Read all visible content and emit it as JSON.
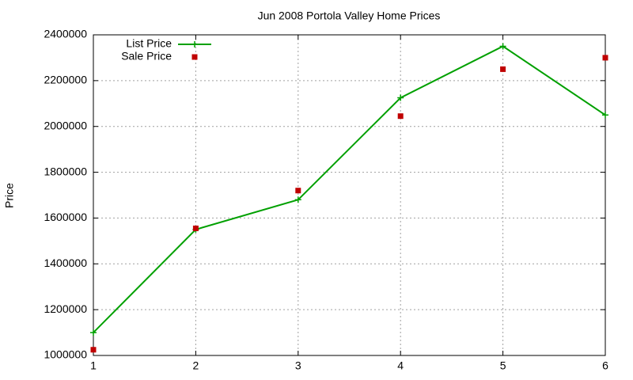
{
  "chart_data": {
    "type": "line",
    "title": "Jun 2008 Portola Valley Home Prices",
    "y_label": "Price",
    "x": [
      1,
      2,
      3,
      4,
      5,
      6
    ],
    "series": [
      {
        "name": "List Price",
        "color": "#00a000",
        "style": "linespoints",
        "values": [
          1100000,
          1550000,
          1680000,
          2125000,
          2350000,
          2050000
        ]
      },
      {
        "name": "Sale Price",
        "color": "#c00000",
        "style": "points",
        "values": [
          1025000,
          1555000,
          1720000,
          2045000,
          2250000,
          2300000
        ]
      }
    ],
    "xlim": [
      1,
      6
    ],
    "xticks": [
      1,
      2,
      3,
      4,
      5,
      6
    ],
    "ylim": [
      1000000,
      2400000
    ],
    "yticks": [
      1000000,
      1200000,
      1400000,
      1600000,
      1800000,
      2000000,
      2200000,
      2400000
    ],
    "grid": true,
    "legend": "top-left"
  }
}
